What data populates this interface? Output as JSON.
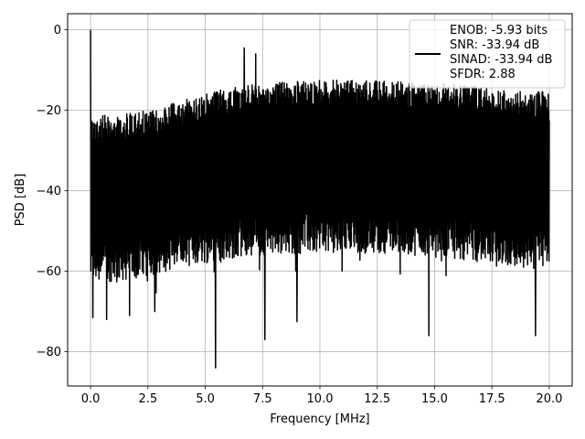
{
  "chart_data": {
    "type": "line",
    "title": "",
    "xlabel": "Frequency [MHz]",
    "ylabel": "PSD [dB]",
    "xlim": [
      -1.0,
      21.0
    ],
    "ylim": [
      -88.5,
      4.0
    ],
    "grid": true,
    "legend_position": "top-right",
    "x_ticks": [
      0.0,
      2.5,
      5.0,
      7.5,
      10.0,
      12.5,
      15.0,
      17.5,
      20.0
    ],
    "x_tick_labels": [
      "0.0",
      "2.5",
      "5.0",
      "7.5",
      "10.0",
      "12.5",
      "15.0",
      "17.5",
      "20.0"
    ],
    "y_ticks": [
      0,
      -20,
      -40,
      -60,
      -80
    ],
    "y_tick_labels": [
      "0",
      "−20",
      "−40",
      "−60",
      "−80"
    ],
    "series": [
      {
        "color": "#000000",
        "x_range": [
          0.0,
          20.0
        ],
        "dc_peak": {
          "x": 0.0,
          "y": 0.0
        },
        "upper_envelope": [
          {
            "x": 0.0,
            "y": -21.5
          },
          {
            "x": 1.0,
            "y": -21.0
          },
          {
            "x": 2.0,
            "y": -20.5
          },
          {
            "x": 3.0,
            "y": -19.5
          },
          {
            "x": 4.0,
            "y": -17.5
          },
          {
            "x": 5.0,
            "y": -16.0
          },
          {
            "x": 6.0,
            "y": -14.5
          },
          {
            "x": 7.0,
            "y": -13.5
          },
          {
            "x": 8.0,
            "y": -13.0
          },
          {
            "x": 10.0,
            "y": -12.5
          },
          {
            "x": 12.0,
            "y": -12.5
          },
          {
            "x": 14.0,
            "y": -13.0
          },
          {
            "x": 16.0,
            "y": -13.5
          },
          {
            "x": 18.0,
            "y": -14.5
          },
          {
            "x": 20.0,
            "y": -15.5
          }
        ],
        "lower_envelope": [
          {
            "x": 0.0,
            "y": -63.0
          },
          {
            "x": 2.0,
            "y": -62.0
          },
          {
            "x": 4.0,
            "y": -59.0
          },
          {
            "x": 6.0,
            "y": -57.0
          },
          {
            "x": 8.0,
            "y": -56.0
          },
          {
            "x": 10.0,
            "y": -55.5
          },
          {
            "x": 12.0,
            "y": -55.5
          },
          {
            "x": 14.0,
            "y": -56.0
          },
          {
            "x": 16.0,
            "y": -57.0
          },
          {
            "x": 18.0,
            "y": -58.5
          },
          {
            "x": 20.0,
            "y": -60.0
          }
        ],
        "spurs": [
          {
            "x": 6.7,
            "y": -4.5
          },
          {
            "x": 7.2,
            "y": -6.0
          }
        ],
        "dips": [
          {
            "x": 0.1,
            "y": -71.5
          },
          {
            "x": 0.7,
            "y": -72.0
          },
          {
            "x": 1.7,
            "y": -71.0
          },
          {
            "x": 2.8,
            "y": -70.0
          },
          {
            "x": 5.45,
            "y": -84.0
          },
          {
            "x": 7.6,
            "y": -77.0
          },
          {
            "x": 9.0,
            "y": -72.5
          },
          {
            "x": 14.75,
            "y": -76.0
          },
          {
            "x": 19.4,
            "y": -76.0
          }
        ]
      }
    ],
    "legend_entries": [
      "ENOB: -5.93 bits",
      "SNR: -33.94 dB",
      "SINAD: -33.94 dB",
      "SFDR: 2.88"
    ]
  }
}
